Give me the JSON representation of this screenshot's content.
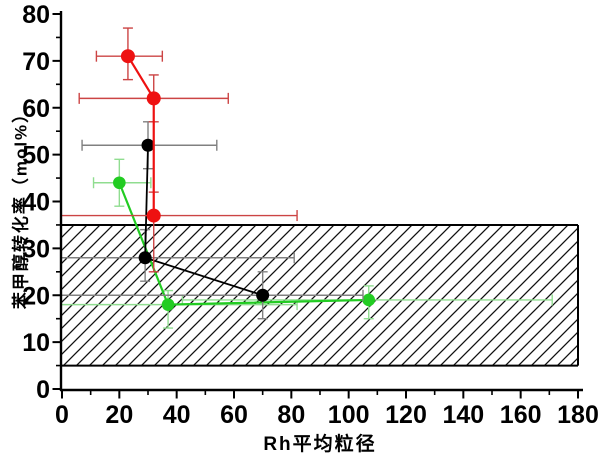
{
  "figure": {
    "background": "#ffffff"
  },
  "chart_data": {
    "type": "scatter",
    "title": "",
    "xlabel": "Rh平均粒径",
    "ylabel": "苯甲醇转化率（mol%）",
    "xlim": [
      0,
      180
    ],
    "ylim": [
      0,
      80
    ],
    "x_major_ticks": [
      0,
      20,
      40,
      60,
      80,
      100,
      120,
      140,
      160,
      180
    ],
    "x_minor_ticks": [
      10,
      30,
      50,
      70,
      90,
      110,
      130,
      150,
      170
    ],
    "y_major_ticks": [
      0,
      10,
      20,
      30,
      40,
      50,
      60,
      70,
      80
    ],
    "y_minor_ticks": [
      5,
      15,
      25,
      35,
      45,
      55,
      65,
      75
    ],
    "grid": false,
    "legend": "none",
    "axis_color": "#000000",
    "hatched_band": {
      "x_min": 0,
      "x_max": 180,
      "y_min": 5,
      "y_max": 35,
      "style": "diagonal-hatch",
      "hatch_color": "#111111",
      "border_color": "#000000"
    },
    "series": [
      {
        "name": "green-series",
        "marker": "circle",
        "color": "#22cc22",
        "errorbar_color": "#90dd90",
        "line_width": 2.2,
        "marker_radius": 6.3,
        "points": [
          {
            "x": 20,
            "y": 44,
            "x_err_range": [
              11,
              31
            ],
            "y_err_range": [
              39,
              49
            ]
          },
          {
            "x": 37,
            "y": 18,
            "x_err_range": [
              0,
              82
            ],
            "y_err_range": [
              13,
              21
            ]
          },
          {
            "x": 107,
            "y": 19,
            "x_err_range": [
              42,
              171
            ],
            "y_err_range": [
              15,
              22
            ]
          }
        ]
      },
      {
        "name": "black-series",
        "marker": "circle",
        "color": "#000000",
        "errorbar_color": "#808080",
        "line_width": 1.8,
        "marker_radius": 6.5,
        "points": [
          {
            "x": 30,
            "y": 52,
            "x_err_range": [
              7,
              54
            ],
            "y_err_range": [
              47,
              57
            ]
          },
          {
            "x": 29,
            "y": 28,
            "x_err_range": [
              0,
              81
            ],
            "y_err_range": [
              23,
              34
            ]
          },
          {
            "x": 70,
            "y": 20,
            "x_err_range": [
              0,
              105
            ],
            "y_err_range": [
              15,
              25
            ]
          }
        ]
      },
      {
        "name": "red-series",
        "marker": "circle",
        "color": "#ee1111",
        "errorbar_color": "#cc4444",
        "line_width": 2.2,
        "marker_radius": 7,
        "points": [
          {
            "x": 23,
            "y": 71,
            "x_err_range": [
              12,
              35
            ],
            "y_err_range": [
              66,
              77
            ]
          },
          {
            "x": 32,
            "y": 62,
            "x_err_range": [
              6,
              58
            ],
            "y_err_range": [
              57,
              67
            ]
          },
          {
            "x": 32,
            "y": 37,
            "x_err_range": [
              0,
              82
            ],
            "y_err_range": [
              25,
              42
            ]
          }
        ]
      }
    ]
  }
}
